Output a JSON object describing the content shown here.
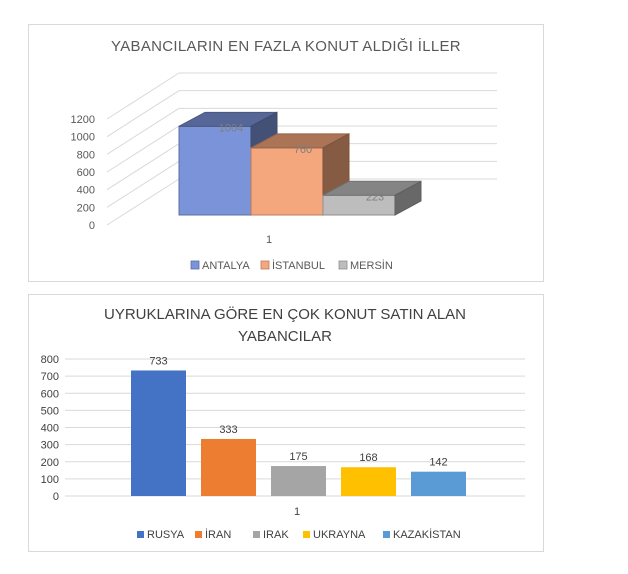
{
  "chart_data": [
    {
      "type": "bar",
      "style": "3d-clustered-column",
      "title": "YABANCILARIN  EN FAZLA KONUT ALDIĞI İLLER",
      "categories": [
        "1"
      ],
      "yticks": [
        "0",
        "200",
        "400",
        "600",
        "800",
        "1000",
        "1200"
      ],
      "ylim": [
        0,
        1200
      ],
      "grid": true,
      "legend_position": "bottom",
      "series": [
        {
          "name": "ANTALYA",
          "values": [
            1004
          ],
          "label": "1004",
          "color": "#7b93d8"
        },
        {
          "name": "İSTANBUL",
          "values": [
            760
          ],
          "label": "760",
          "color": "#f4a67c"
        },
        {
          "name": "MERSİN",
          "values": [
            223
          ],
          "label": "223",
          "color": "#bdbdbd"
        }
      ]
    },
    {
      "type": "bar",
      "title": "UYRUKLARINA GÖRE EN ÇOK KONUT SATIN ALAN YABANCILAR",
      "title_lines": [
        "UYRUKLARINA GÖRE EN ÇOK KONUT SATIN ALAN",
        "YABANCILAR"
      ],
      "categories": [
        "1"
      ],
      "yticks": [
        "0",
        "100",
        "200",
        "300",
        "400",
        "500",
        "600",
        "700",
        "800"
      ],
      "ylim": [
        0,
        800
      ],
      "grid": true,
      "legend_position": "bottom",
      "series": [
        {
          "name": "RUSYA",
          "values": [
            733
          ],
          "label": "733",
          "color": "#4472c4"
        },
        {
          "name": "İRAN",
          "values": [
            333
          ],
          "label": "333",
          "color": "#ed7d31"
        },
        {
          "name": "IRAK",
          "values": [
            175
          ],
          "label": "175",
          "color": "#a5a5a5"
        },
        {
          "name": "UKRAYNA",
          "values": [
            168
          ],
          "label": "168",
          "color": "#ffc000"
        },
        {
          "name": "KAZAKİSTAN",
          "values": [
            142
          ],
          "label": "142",
          "color": "#5b9bd5"
        }
      ]
    }
  ]
}
